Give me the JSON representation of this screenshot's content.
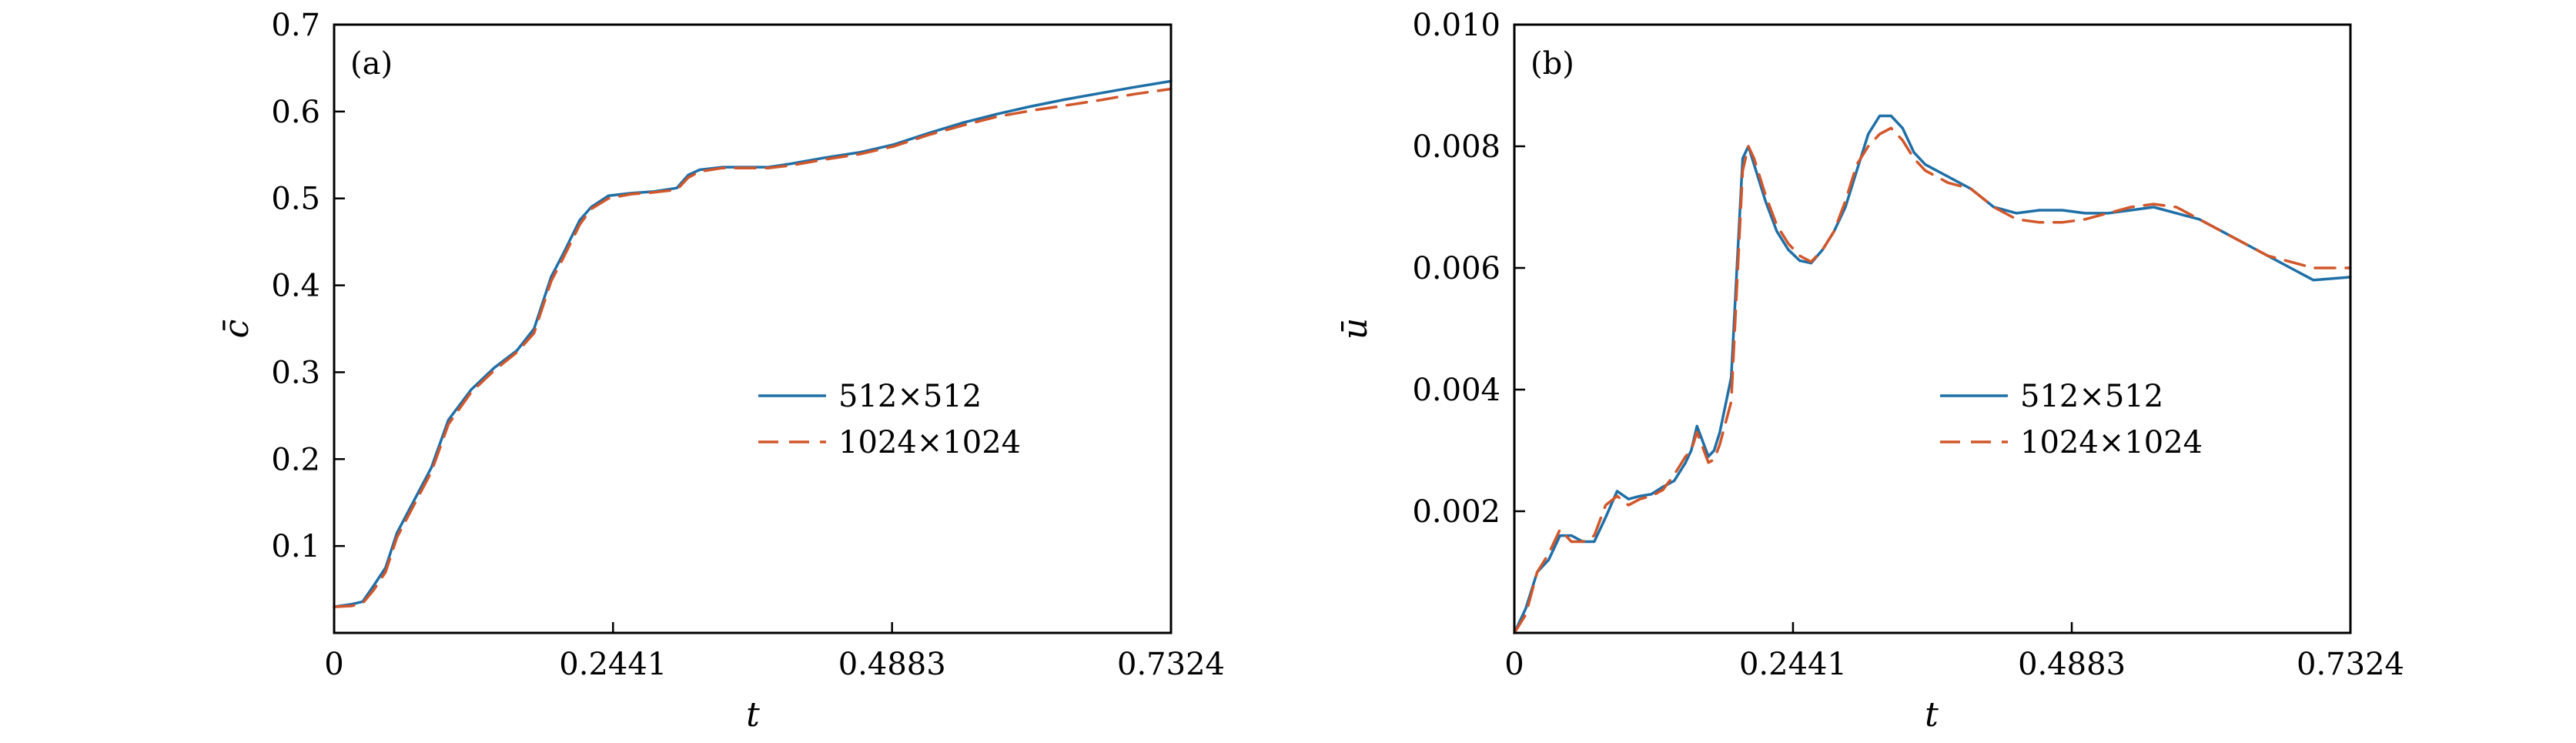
{
  "colors": {
    "series_solid": "#1f6fa7",
    "series_dashed": "#d2562a",
    "axes": "#000000"
  },
  "chart_data": [
    {
      "type": "line",
      "panel_label": "(a)",
      "xlabel": "t",
      "ylabel": "c̄",
      "xlim": [
        0,
        0.7324
      ],
      "ylim": [
        0,
        0.7
      ],
      "xticks": [
        {
          "value": 0,
          "label": "0"
        },
        {
          "value": 0.2441,
          "label": "0.2441"
        },
        {
          "value": 0.4883,
          "label": "0.4883"
        },
        {
          "value": 0.7324,
          "label": "0.7324"
        }
      ],
      "yticks": [
        {
          "value": 0.1,
          "label": "0.1"
        },
        {
          "value": 0.2,
          "label": "0.2"
        },
        {
          "value": 0.3,
          "label": "0.3"
        },
        {
          "value": 0.4,
          "label": "0.4"
        },
        {
          "value": 0.5,
          "label": "0.5"
        },
        {
          "value": 0.6,
          "label": "0.6"
        },
        {
          "value": 0.7,
          "label": "0.7"
        }
      ],
      "legend_position": "center-right",
      "series": [
        {
          "name": "512×512",
          "style": "solid",
          "x": [
            0,
            0.015,
            0.025,
            0.035,
            0.045,
            0.055,
            0.065,
            0.075,
            0.085,
            0.1,
            0.12,
            0.14,
            0.16,
            0.175,
            0.19,
            0.2,
            0.215,
            0.225,
            0.24,
            0.26,
            0.28,
            0.3,
            0.31,
            0.32,
            0.34,
            0.36,
            0.38,
            0.4,
            0.43,
            0.46,
            0.49,
            0.52,
            0.55,
            0.58,
            0.61,
            0.64,
            0.67,
            0.7,
            0.7324
          ],
          "y": [
            0.03,
            0.033,
            0.036,
            0.055,
            0.075,
            0.115,
            0.14,
            0.165,
            0.19,
            0.245,
            0.28,
            0.305,
            0.325,
            0.35,
            0.41,
            0.435,
            0.475,
            0.49,
            0.503,
            0.506,
            0.508,
            0.512,
            0.527,
            0.533,
            0.536,
            0.536,
            0.536,
            0.54,
            0.547,
            0.553,
            0.562,
            0.575,
            0.587,
            0.597,
            0.606,
            0.614,
            0.621,
            0.628,
            0.635
          ]
        },
        {
          "name": "1024×1024",
          "style": "dashed",
          "x": [
            0,
            0.015,
            0.025,
            0.035,
            0.045,
            0.055,
            0.065,
            0.075,
            0.085,
            0.1,
            0.12,
            0.14,
            0.16,
            0.175,
            0.19,
            0.2,
            0.215,
            0.225,
            0.24,
            0.26,
            0.28,
            0.3,
            0.31,
            0.32,
            0.34,
            0.36,
            0.38,
            0.4,
            0.43,
            0.46,
            0.49,
            0.52,
            0.55,
            0.58,
            0.61,
            0.64,
            0.67,
            0.7,
            0.7324
          ],
          "y": [
            0.03,
            0.031,
            0.034,
            0.05,
            0.07,
            0.11,
            0.135,
            0.16,
            0.185,
            0.24,
            0.277,
            0.302,
            0.323,
            0.345,
            0.405,
            0.43,
            0.47,
            0.488,
            0.5,
            0.505,
            0.507,
            0.51,
            0.524,
            0.531,
            0.535,
            0.535,
            0.535,
            0.538,
            0.545,
            0.551,
            0.56,
            0.573,
            0.584,
            0.594,
            0.601,
            0.607,
            0.613,
            0.62,
            0.626
          ]
        }
      ]
    },
    {
      "type": "line",
      "panel_label": "(b)",
      "xlabel": "t",
      "ylabel": "ū",
      "xlim": [
        0,
        0.7324
      ],
      "ylim": [
        0,
        0.01
      ],
      "xticks": [
        {
          "value": 0,
          "label": "0"
        },
        {
          "value": 0.2441,
          "label": "0.2441"
        },
        {
          "value": 0.4883,
          "label": "0.4883"
        },
        {
          "value": 0.7324,
          "label": "0.7324"
        }
      ],
      "yticks": [
        {
          "value": 0.002,
          "label": "0.002"
        },
        {
          "value": 0.004,
          "label": "0.004"
        },
        {
          "value": 0.006,
          "label": "0.006"
        },
        {
          "value": 0.008,
          "label": "0.008"
        },
        {
          "value": 0.01,
          "label": "0.010"
        }
      ],
      "legend_position": "center-right",
      "series": [
        {
          "name": "512×512",
          "style": "solid",
          "x": [
            0,
            0.01,
            0.02,
            0.03,
            0.04,
            0.05,
            0.06,
            0.07,
            0.08,
            0.09,
            0.1,
            0.11,
            0.12,
            0.13,
            0.14,
            0.15,
            0.155,
            0.16,
            0.17,
            0.175,
            0.18,
            0.19,
            0.195,
            0.2,
            0.205,
            0.21,
            0.22,
            0.23,
            0.24,
            0.25,
            0.26,
            0.27,
            0.28,
            0.29,
            0.3,
            0.31,
            0.32,
            0.33,
            0.34,
            0.35,
            0.36,
            0.38,
            0.4,
            0.42,
            0.44,
            0.46,
            0.48,
            0.5,
            0.52,
            0.54,
            0.56,
            0.58,
            0.6,
            0.62,
            0.64,
            0.66,
            0.68,
            0.7,
            0.7324
          ],
          "y": [
            0,
            0.0004,
            0.001,
            0.0012,
            0.0016,
            0.0016,
            0.0015,
            0.0015,
            0.0019,
            0.00233,
            0.0022,
            0.00225,
            0.00228,
            0.0024,
            0.0025,
            0.0028,
            0.003,
            0.0034,
            0.0029,
            0.003,
            0.0033,
            0.0042,
            0.006,
            0.0078,
            0.008,
            0.0077,
            0.0071,
            0.0066,
            0.0063,
            0.00612,
            0.00608,
            0.0063,
            0.0066,
            0.007,
            0.0076,
            0.0082,
            0.0085,
            0.0085,
            0.0083,
            0.0079,
            0.0077,
            0.0075,
            0.0073,
            0.007,
            0.0069,
            0.00695,
            0.00695,
            0.0069,
            0.0069,
            0.00695,
            0.007,
            0.0069,
            0.0068,
            0.0066,
            0.0064,
            0.0062,
            0.006,
            0.0058,
            0.00585
          ]
        },
        {
          "name": "1024×1024",
          "style": "dashed",
          "x": [
            0,
            0.01,
            0.02,
            0.03,
            0.04,
            0.05,
            0.06,
            0.07,
            0.08,
            0.09,
            0.1,
            0.11,
            0.12,
            0.13,
            0.14,
            0.15,
            0.155,
            0.16,
            0.17,
            0.175,
            0.18,
            0.19,
            0.195,
            0.2,
            0.205,
            0.21,
            0.22,
            0.23,
            0.24,
            0.25,
            0.26,
            0.27,
            0.28,
            0.29,
            0.3,
            0.31,
            0.32,
            0.33,
            0.34,
            0.35,
            0.36,
            0.38,
            0.4,
            0.42,
            0.44,
            0.46,
            0.48,
            0.5,
            0.52,
            0.54,
            0.56,
            0.58,
            0.6,
            0.62,
            0.64,
            0.66,
            0.68,
            0.7,
            0.7324
          ],
          "y": [
            0,
            0.0003,
            0.001,
            0.0013,
            0.0017,
            0.0015,
            0.0015,
            0.0016,
            0.0021,
            0.00225,
            0.0021,
            0.0022,
            0.00225,
            0.00235,
            0.0026,
            0.0029,
            0.003,
            0.0033,
            0.0028,
            0.00285,
            0.0031,
            0.0038,
            0.0057,
            0.0076,
            0.008,
            0.0078,
            0.0072,
            0.0067,
            0.0064,
            0.0062,
            0.0061,
            0.0063,
            0.0066,
            0.0071,
            0.0077,
            0.008,
            0.0082,
            0.0083,
            0.0081,
            0.0078,
            0.0076,
            0.0074,
            0.0073,
            0.007,
            0.0068,
            0.00675,
            0.00675,
            0.0068,
            0.0069,
            0.007,
            0.00705,
            0.007,
            0.0068,
            0.0066,
            0.0064,
            0.0062,
            0.0061,
            0.006,
            0.006
          ]
        }
      ]
    }
  ]
}
